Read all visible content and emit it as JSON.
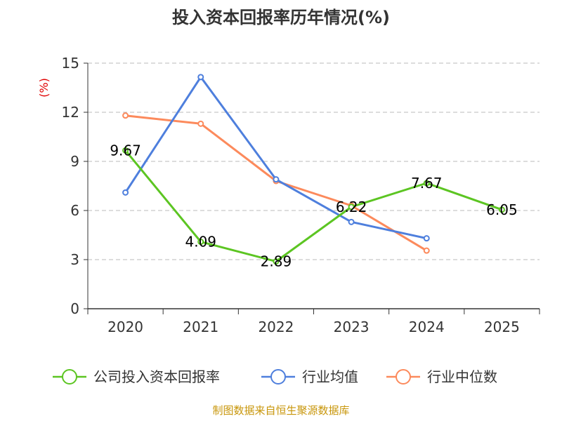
{
  "chart_data": {
    "type": "line",
    "title": "投入资本回报率历年情况(%)",
    "ylabel": "(%)",
    "xlabel": "",
    "categories": [
      "2020",
      "2021",
      "2022",
      "2023",
      "2024",
      "2025"
    ],
    "ylim": [
      0,
      15
    ],
    "yticks": [
      "0",
      "3",
      "6",
      "9",
      "12",
      "15"
    ],
    "grid": true,
    "legend_position": "bottom",
    "series": [
      {
        "name": "公司投入资本回报率",
        "color": "#5cc522",
        "values": [
          9.67,
          4.09,
          2.89,
          6.22,
          7.67,
          6.05
        ],
        "labels": [
          "9.67",
          "4.09",
          "2.89",
          "6.22",
          "7.67",
          "6.05"
        ]
      },
      {
        "name": "行业均值",
        "color": "#4e7fdd",
        "values": [
          7.1,
          14.15,
          7.9,
          5.3,
          4.3,
          null
        ]
      },
      {
        "name": "行业中位数",
        "color": "#fc8a5c",
        "values": [
          11.8,
          11.3,
          7.8,
          6.3,
          3.55,
          null
        ]
      }
    ],
    "source": "制图数据来自恒生聚源数据库"
  }
}
